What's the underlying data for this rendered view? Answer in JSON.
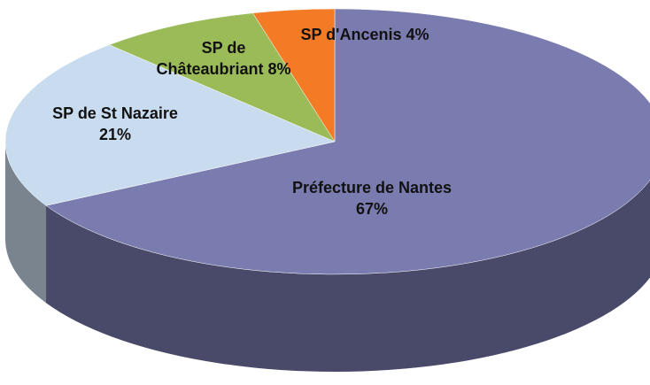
{
  "chart_data": {
    "type": "pie",
    "categories": [
      "Préfecture de Nantes",
      "SP de St Nazaire",
      "SP de Châteaubriant",
      "SP d'Ancenis"
    ],
    "values": [
      67,
      21,
      8,
      4
    ],
    "value_labels": [
      "67%",
      "21%",
      "8%",
      "4%"
    ],
    "colors": [
      "#7a7cb0",
      "#c9dcef",
      "#9bbb59",
      "#f47b26"
    ]
  }
}
